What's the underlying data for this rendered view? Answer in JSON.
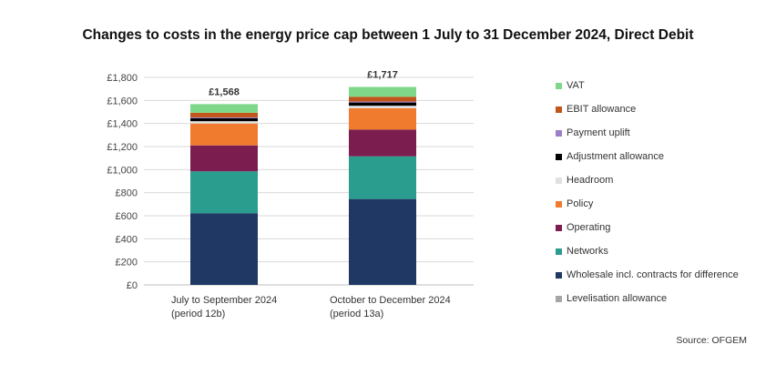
{
  "chart_data": {
    "type": "bar",
    "stacked": true,
    "title": "Changes to costs in the energy price cap between 1 July to 31 December 2024, Direct Debit",
    "categories": [
      [
        "July to September 2024",
        "(period 12b)"
      ],
      [
        "October to December 2024",
        "(period 13a)"
      ]
    ],
    "totals": [
      1568,
      1717
    ],
    "total_labels": [
      "£1,568",
      "£1,717"
    ],
    "ylim": [
      0,
      1800
    ],
    "yticks": [
      "£0",
      "£200",
      "£400",
      "£600",
      "£800",
      "£1,000",
      "£1,200",
      "£1,400",
      "£1,600",
      "£1,800"
    ],
    "grid": true,
    "legend_position": "right",
    "series": [
      {
        "name": "Levelisation allowance",
        "color": "#a6a6a6",
        "values": [
          0,
          0
        ]
      },
      {
        "name": "Wholesale incl. contracts for difference",
        "color": "#1f3864",
        "values": [
          622,
          745
        ]
      },
      {
        "name": "Networks",
        "color": "#2a9d8f",
        "values": [
          363,
          370
        ]
      },
      {
        "name": "Operating",
        "color": "#7b1d4f",
        "values": [
          225,
          232
        ]
      },
      {
        "name": "Policy",
        "color": "#f07a2e",
        "values": [
          190,
          185
        ]
      },
      {
        "name": "Headroom",
        "color": "#e0e0e0",
        "values": [
          20,
          22
        ]
      },
      {
        "name": "Adjustment allowance",
        "color": "#000000",
        "values": [
          25,
          28
        ]
      },
      {
        "name": "Payment uplift",
        "color": "#9b7fc7",
        "values": [
          8,
          8
        ]
      },
      {
        "name": "EBIT allowance",
        "color": "#c0561b",
        "values": [
          40,
          42
        ]
      },
      {
        "name": "VAT",
        "color": "#7fd88a",
        "values": [
          75,
          85
        ]
      }
    ]
  },
  "source": "Source: OFGEM"
}
